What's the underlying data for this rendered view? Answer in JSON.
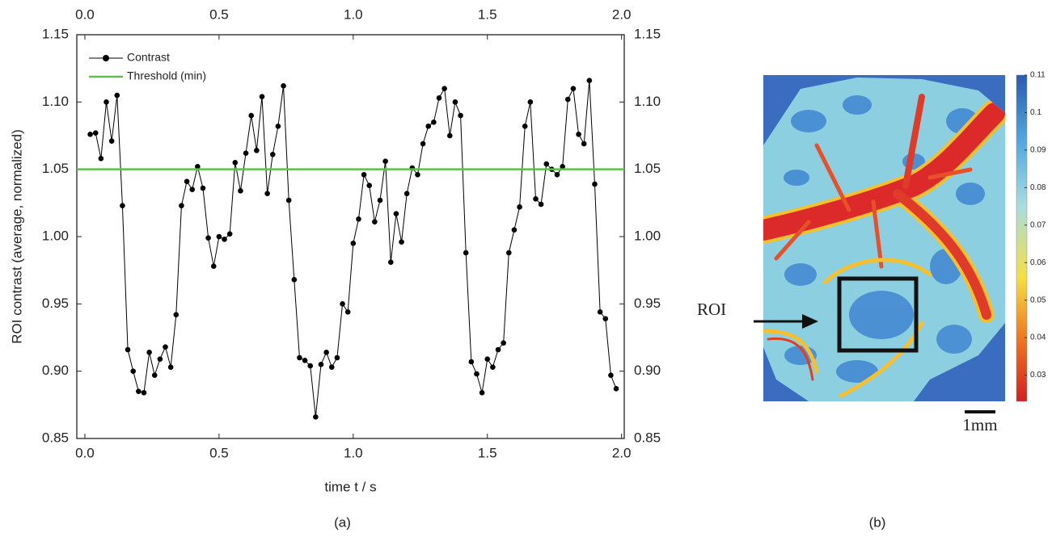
{
  "chart_data": [
    {
      "type": "line",
      "panel_label": "(a)",
      "x_label": "time t / s",
      "y_label": "ROI contrast (average, normalized)",
      "xlim": [
        -0.03,
        2.01
      ],
      "xticks": [
        {
          "value": 0,
          "label": "0.0"
        },
        0.5,
        {
          "value": 1,
          "label": "1.0"
        },
        1.5,
        {
          "value": 2,
          "label": "2.0"
        }
      ],
      "ylim": [
        0.85,
        1.15
      ],
      "yticks": [
        0.85,
        {
          "value": 0.9,
          "label": "0.90"
        },
        0.95,
        {
          "value": 1,
          "label": "1.00"
        },
        1.05,
        {
          "value": 1.1,
          "label": "1.10"
        },
        1.15
      ],
      "legend": "upper left",
      "x": [
        0.02,
        0.04,
        0.06,
        0.08,
        0.1,
        0.12,
        0.14,
        0.16,
        0.18,
        0.2,
        0.22,
        0.24,
        0.26,
        0.28,
        0.3,
        0.32,
        0.34,
        0.36,
        0.38,
        0.4,
        0.42,
        0.44,
        0.46,
        0.48,
        0.5,
        0.52,
        0.54,
        0.56,
        0.58,
        0.6,
        0.62,
        0.64,
        0.66,
        0.68,
        0.7,
        0.72,
        0.74,
        0.76,
        0.78,
        0.8,
        0.82,
        0.84,
        0.86,
        0.88,
        0.9,
        0.92,
        0.94,
        0.96,
        0.98,
        1.0,
        1.02,
        1.04,
        1.06,
        1.08,
        1.1,
        1.12,
        1.14,
        1.16,
        1.18,
        1.2,
        1.22,
        1.24,
        1.26,
        1.28,
        1.3,
        1.32,
        1.34,
        1.36,
        1.38,
        1.4,
        1.42,
        1.44,
        1.46,
        1.48,
        1.5,
        1.52,
        1.54,
        1.56,
        1.58,
        1.6,
        1.62,
        1.64,
        1.66,
        1.68,
        1.7,
        1.72,
        1.74,
        1.76,
        1.78,
        1.8,
        1.82,
        1.84,
        1.86,
        1.88,
        1.9,
        1.92,
        1.94,
        1.96,
        1.98
      ],
      "series": [
        {
          "name": "Contrast",
          "color": "#000000",
          "values": [
            1.076,
            1.077,
            1.058,
            1.1,
            1.071,
            1.105,
            1.023,
            0.916,
            0.9,
            0.885,
            0.884,
            0.914,
            0.897,
            0.909,
            0.918,
            0.903,
            0.942,
            1.023,
            1.041,
            1.035,
            1.052,
            1.036,
            0.999,
            0.978,
            1.0,
            0.998,
            1.002,
            1.055,
            1.034,
            1.062,
            1.09,
            1.064,
            1.104,
            1.032,
            1.061,
            1.082,
            1.112,
            1.027,
            0.968,
            0.91,
            0.908,
            0.904,
            0.866,
            0.905,
            0.914,
            0.903,
            0.91,
            0.95,
            0.944,
            0.995,
            1.013,
            1.046,
            1.038,
            1.011,
            1.027,
            1.056,
            0.981,
            1.017,
            0.996,
            1.032,
            1.051,
            1.046,
            1.069,
            1.082,
            1.085,
            1.103,
            1.11,
            1.075,
            1.1,
            1.09,
            0.988,
            0.907,
            0.898,
            0.884,
            0.909,
            0.903,
            0.916,
            0.921,
            0.988,
            1.005,
            1.022,
            1.082,
            1.1,
            1.028,
            1.024,
            1.054,
            1.05,
            1.046,
            1.052,
            1.102,
            1.11,
            1.076,
            1.069,
            1.116,
            1.039,
            0.944,
            0.939,
            0.897,
            0.887
          ]
        },
        {
          "name": "Threshold (min)",
          "color": "#5cc04a",
          "x": [
            -0.03,
            2.01
          ],
          "values": [
            1.05,
            1.05
          ]
        }
      ]
    },
    {
      "type": "image",
      "panel_label": "(b)",
      "annotation": "ROI",
      "scale_bar": "1mm",
      "colorbar": {
        "lim": [
          0.023,
          0.11
        ],
        "ticks": [
          0.03,
          0.04,
          0.05,
          0.06,
          0.07,
          0.08,
          0.09,
          0.1,
          0.11
        ]
      }
    }
  ]
}
